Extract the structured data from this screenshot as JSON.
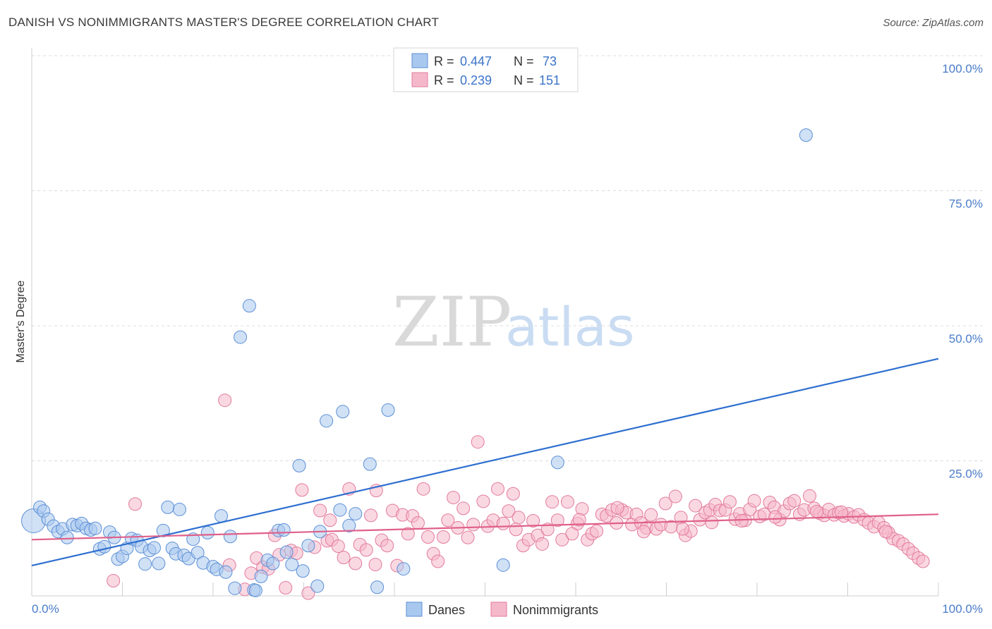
{
  "title": "DANISH VS NONIMMIGRANTS MASTER'S DEGREE CORRELATION CHART",
  "source": "Source: ZipAtlas.com",
  "watermark": {
    "zip": "ZIP",
    "atlas": "atlas"
  },
  "colors": {
    "danes_fill": "#a9c8ef",
    "danes_stroke": "#5b8fd6",
    "danes_line": "#2e6fd0",
    "non_fill": "#f5b8cb",
    "non_stroke": "#e27a9c",
    "non_line": "#e0608a",
    "tick": "#4a7cc9",
    "grid": "#dcdcdc"
  },
  "legend": {
    "rows": [
      {
        "r_label": "R =",
        "r_value": "0.447",
        "n_label": "N =",
        "n_value": "73"
      },
      {
        "r_label": "R =",
        "r_value": "0.239",
        "n_label": "N =",
        "n_value": "151"
      }
    ]
  },
  "bottom_legend": [
    "Danes",
    "Nonimmigrants"
  ],
  "chart_data": {
    "type": "scatter",
    "title": "DANISH VS NONIMMIGRANTS MASTER'S DEGREE CORRELATION CHART",
    "xlabel": "",
    "ylabel": "Master's Degree",
    "xlim": [
      0,
      100
    ],
    "ylim": [
      0,
      100
    ],
    "x_tick_labels": [
      "0.0%",
      "100.0%"
    ],
    "y_ticks": [
      25,
      50,
      75,
      100
    ],
    "y_tick_labels": [
      "25.0%",
      "50.0%",
      "75.0%",
      "100.0%"
    ],
    "grid": true,
    "legend_position": "top-center",
    "series": [
      {
        "name": "Danes",
        "R": 0.447,
        "N": 73,
        "trend": [
          [
            0,
            5.6
          ],
          [
            100,
            43.9
          ]
        ],
        "points": [
          [
            0.2,
            13.9
          ],
          [
            0.9,
            16.4
          ],
          [
            1.3,
            15.7
          ],
          [
            1.8,
            14.2
          ],
          [
            2.4,
            12.9
          ],
          [
            2.9,
            11.9
          ],
          [
            3.4,
            12.4
          ],
          [
            3.9,
            10.8
          ],
          [
            4.5,
            13.2
          ],
          [
            5.0,
            13.0
          ],
          [
            5.5,
            13.4
          ],
          [
            6.0,
            12.5
          ],
          [
            6.5,
            12.2
          ],
          [
            7.0,
            12.5
          ],
          [
            7.5,
            8.7
          ],
          [
            8.0,
            9.1
          ],
          [
            8.6,
            11.8
          ],
          [
            9.1,
            10.8
          ],
          [
            9.5,
            6.8
          ],
          [
            10.0,
            7.3
          ],
          [
            10.5,
            8.8
          ],
          [
            11.0,
            10.6
          ],
          [
            11.6,
            10.3
          ],
          [
            12.1,
            9.1
          ],
          [
            12.5,
            5.9
          ],
          [
            13.0,
            8.4
          ],
          [
            13.5,
            8.9
          ],
          [
            14.0,
            6.0
          ],
          [
            14.5,
            12.1
          ],
          [
            15.0,
            16.4
          ],
          [
            15.5,
            8.8
          ],
          [
            15.9,
            7.8
          ],
          [
            16.3,
            16.0
          ],
          [
            16.8,
            7.5
          ],
          [
            17.3,
            6.9
          ],
          [
            17.8,
            10.5
          ],
          [
            18.3,
            8.0
          ],
          [
            18.9,
            6.1
          ],
          [
            19.4,
            11.7
          ],
          [
            20.0,
            5.4
          ],
          [
            20.4,
            4.9
          ],
          [
            20.9,
            14.8
          ],
          [
            21.4,
            4.4
          ],
          [
            21.9,
            11.0
          ],
          [
            22.4,
            1.4
          ],
          [
            23.0,
            47.9
          ],
          [
            24.0,
            53.7
          ],
          [
            24.5,
            1.1
          ],
          [
            25.3,
            3.6
          ],
          [
            26.0,
            6.6
          ],
          [
            26.6,
            6.0
          ],
          [
            27.2,
            12.1
          ],
          [
            27.8,
            12.2
          ],
          [
            28.1,
            8.1
          ],
          [
            28.7,
            5.8
          ],
          [
            29.5,
            24.1
          ],
          [
            29.9,
            4.6
          ],
          [
            30.5,
            9.3
          ],
          [
            31.5,
            1.8
          ],
          [
            31.8,
            11.9
          ],
          [
            32.5,
            32.4
          ],
          [
            34.0,
            15.9
          ],
          [
            34.3,
            34.1
          ],
          [
            35.0,
            13.0
          ],
          [
            35.7,
            15.2
          ],
          [
            37.3,
            24.4
          ],
          [
            38.1,
            1.6
          ],
          [
            39.3,
            34.4
          ],
          [
            41.0,
            5.0
          ],
          [
            52.0,
            5.7
          ],
          [
            58.0,
            24.7
          ],
          [
            85.4,
            85.3
          ],
          [
            24.7,
            1.0
          ]
        ]
      },
      {
        "name": "Nonimmigrants",
        "R": 0.239,
        "N": 151,
        "trend": [
          [
            0,
            10.4
          ],
          [
            100,
            15.1
          ]
        ],
        "points": [
          [
            9.0,
            2.8
          ],
          [
            11.4,
            17.0
          ],
          [
            21.3,
            36.2
          ],
          [
            21.8,
            5.7
          ],
          [
            23.5,
            1.2
          ],
          [
            24.2,
            4.2
          ],
          [
            24.8,
            7.0
          ],
          [
            25.5,
            5.3
          ],
          [
            26.1,
            5.0
          ],
          [
            26.8,
            11.2
          ],
          [
            27.3,
            7.6
          ],
          [
            28.0,
            1.5
          ],
          [
            28.6,
            8.4
          ],
          [
            29.2,
            7.9
          ],
          [
            29.8,
            19.6
          ],
          [
            30.5,
            0.5
          ],
          [
            31.2,
            9.0
          ],
          [
            31.8,
            15.8
          ],
          [
            32.6,
            10.2
          ],
          [
            33.1,
            10.4
          ],
          [
            33.8,
            9.2
          ],
          [
            34.4,
            7.1
          ],
          [
            35.0,
            19.8
          ],
          [
            35.7,
            6.0
          ],
          [
            36.2,
            9.5
          ],
          [
            36.9,
            8.5
          ],
          [
            37.4,
            14.9
          ],
          [
            38.0,
            19.5
          ],
          [
            38.6,
            10.3
          ],
          [
            39.2,
            9.3
          ],
          [
            39.8,
            15.8
          ],
          [
            40.3,
            5.6
          ],
          [
            40.9,
            15.0
          ],
          [
            41.5,
            11.5
          ],
          [
            42.0,
            14.8
          ],
          [
            42.6,
            13.5
          ],
          [
            43.2,
            19.8
          ],
          [
            43.7,
            10.9
          ],
          [
            44.3,
            7.8
          ],
          [
            44.8,
            6.4
          ],
          [
            45.4,
            10.9
          ],
          [
            45.9,
            14.0
          ],
          [
            46.5,
            18.2
          ],
          [
            47.0,
            12.6
          ],
          [
            47.6,
            16.2
          ],
          [
            48.1,
            10.8
          ],
          [
            48.7,
            13.2
          ],
          [
            49.2,
            28.5
          ],
          [
            49.8,
            17.5
          ],
          [
            50.3,
            12.9
          ],
          [
            50.9,
            14.0
          ],
          [
            51.4,
            19.8
          ],
          [
            52.0,
            13.4
          ],
          [
            52.6,
            15.7
          ],
          [
            53.1,
            18.9
          ],
          [
            53.7,
            14.5
          ],
          [
            54.2,
            9.3
          ],
          [
            54.8,
            10.4
          ],
          [
            55.3,
            13.9
          ],
          [
            55.8,
            11.2
          ],
          [
            56.3,
            9.6
          ],
          [
            56.9,
            12.3
          ],
          [
            57.4,
            17.4
          ],
          [
            58.0,
            14.0
          ],
          [
            58.5,
            10.4
          ],
          [
            59.1,
            17.4
          ],
          [
            59.6,
            11.5
          ],
          [
            60.2,
            13.4
          ],
          [
            60.7,
            16.1
          ],
          [
            61.3,
            10.4
          ],
          [
            61.8,
            11.5
          ],
          [
            62.3,
            12.0
          ],
          [
            62.9,
            15.1
          ],
          [
            63.4,
            14.8
          ],
          [
            64.0,
            15.9
          ],
          [
            64.5,
            13.5
          ],
          [
            65.1,
            15.9
          ],
          [
            65.6,
            15.4
          ],
          [
            66.2,
            13.2
          ],
          [
            66.7,
            15.1
          ],
          [
            67.2,
            13.5
          ],
          [
            67.8,
            12.6
          ],
          [
            68.3,
            15.0
          ],
          [
            68.9,
            12.4
          ],
          [
            69.4,
            13.2
          ],
          [
            69.9,
            17.1
          ],
          [
            70.5,
            12.8
          ],
          [
            71.0,
            18.4
          ],
          [
            71.6,
            14.5
          ],
          [
            72.1,
            11.2
          ],
          [
            72.7,
            12.0
          ],
          [
            73.2,
            16.7
          ],
          [
            73.7,
            14.1
          ],
          [
            74.3,
            15.4
          ],
          [
            74.8,
            15.9
          ],
          [
            75.4,
            16.9
          ],
          [
            75.9,
            15.8
          ],
          [
            76.5,
            15.9
          ],
          [
            77.0,
            17.4
          ],
          [
            77.6,
            14.2
          ],
          [
            78.1,
            15.2
          ],
          [
            78.7,
            14.0
          ],
          [
            79.2,
            16.0
          ],
          [
            79.7,
            17.6
          ],
          [
            80.3,
            14.7
          ],
          [
            80.8,
            15.1
          ],
          [
            81.4,
            17.3
          ],
          [
            81.9,
            16.4
          ],
          [
            82.5,
            14.1
          ],
          [
            83.0,
            15.7
          ],
          [
            83.6,
            17.1
          ],
          [
            84.1,
            17.6
          ],
          [
            84.7,
            15.1
          ],
          [
            85.2,
            15.9
          ],
          [
            85.8,
            18.5
          ],
          [
            86.3,
            16.2
          ],
          [
            86.9,
            15.3
          ],
          [
            87.4,
            14.9
          ],
          [
            87.9,
            16.0
          ],
          [
            88.5,
            15.0
          ],
          [
            89.0,
            15.4
          ],
          [
            89.6,
            14.8
          ],
          [
            90.1,
            15.2
          ],
          [
            90.7,
            14.6
          ],
          [
            91.2,
            15.0
          ],
          [
            91.8,
            14.1
          ],
          [
            92.3,
            13.5
          ],
          [
            92.9,
            12.8
          ],
          [
            93.4,
            13.6
          ],
          [
            94.0,
            12.6
          ],
          [
            94.5,
            11.7
          ],
          [
            95.0,
            10.6
          ],
          [
            95.6,
            10.2
          ],
          [
            96.1,
            9.6
          ],
          [
            96.7,
            8.7
          ],
          [
            97.2,
            7.9
          ],
          [
            97.8,
            7.0
          ],
          [
            98.3,
            6.4
          ],
          [
            32.9,
            14.0
          ],
          [
            37.9,
            5.8
          ],
          [
            53.4,
            12.3
          ],
          [
            60.4,
            14.1
          ],
          [
            64.6,
            16.3
          ],
          [
            67.5,
            11.9
          ],
          [
            71.8,
            12.4
          ],
          [
            75.0,
            13.6
          ],
          [
            78.3,
            13.9
          ],
          [
            82.0,
            14.6
          ],
          [
            86.6,
            15.6
          ],
          [
            89.3,
            15.5
          ],
          [
            94.2,
            11.9
          ]
        ]
      }
    ]
  }
}
